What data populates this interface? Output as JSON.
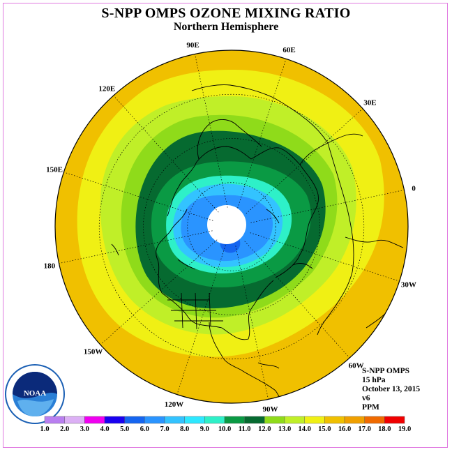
{
  "header": {
    "title": "S-NPP OMPS OZONE MIXING RATIO",
    "subtitle": "Northern Hemisphere"
  },
  "longitude_labels": [
    "90E",
    "60E",
    "30E",
    "0",
    "30W",
    "60W",
    "90W",
    "120W",
    "150W",
    "180",
    "150E",
    "120E"
  ],
  "info": {
    "instrument": "S-NPP OMPS",
    "level": "15 hPa",
    "date": "October 13, 2015",
    "version": "v6",
    "units": "PPM"
  },
  "logo": {
    "text": "NOAA",
    "ring_text": "NATIONAL OCEANIC AND ATMOSPHERIC ADMINISTRATION · U.S. DEPARTMENT OF COMMERCE"
  },
  "colorbar": {
    "labels": [
      "1.0",
      "2.0",
      "3.0",
      "4.0",
      "5.0",
      "6.0",
      "7.0",
      "8.0",
      "9.0",
      "10.0",
      "11.0",
      "12.0",
      "13.0",
      "14.0",
      "15.0",
      "16.0",
      "17.0",
      "18.0",
      "19.0"
    ],
    "colors": [
      "#b97ff0",
      "#dcb0f5",
      "#f000f0",
      "#1a00f0",
      "#1565f0",
      "#2a94ff",
      "#33c3ff",
      "#2ee8ff",
      "#2ef0c8",
      "#0a9a44",
      "#066a30",
      "#8fdb1a",
      "#c0ef28",
      "#f0f014",
      "#f0c000",
      "#f0a000",
      "#f06a00",
      "#f00000",
      "#8b5a3c"
    ]
  },
  "map_data": {
    "projection": "north polar stereographic",
    "field": "ozone mixing ratio (ppm)",
    "contour_levels": [
      {
        "value": 14,
        "color": "#f0c000"
      },
      {
        "value": 13,
        "color": "#f0f014"
      },
      {
        "value": 12,
        "color": "#c0ef28"
      },
      {
        "value": 11,
        "color": "#8fdb1a"
      },
      {
        "value": 10,
        "color": "#066a30"
      },
      {
        "value": 9,
        "color": "#0a9a44"
      },
      {
        "value": 8,
        "color": "#2ef0c8"
      },
      {
        "value": 7,
        "color": "#33c3ff"
      },
      {
        "value": 6,
        "color": "#2a94ff"
      },
      {
        "value": 5,
        "color": "#1565f0"
      }
    ],
    "polar_night_no_data": true
  }
}
